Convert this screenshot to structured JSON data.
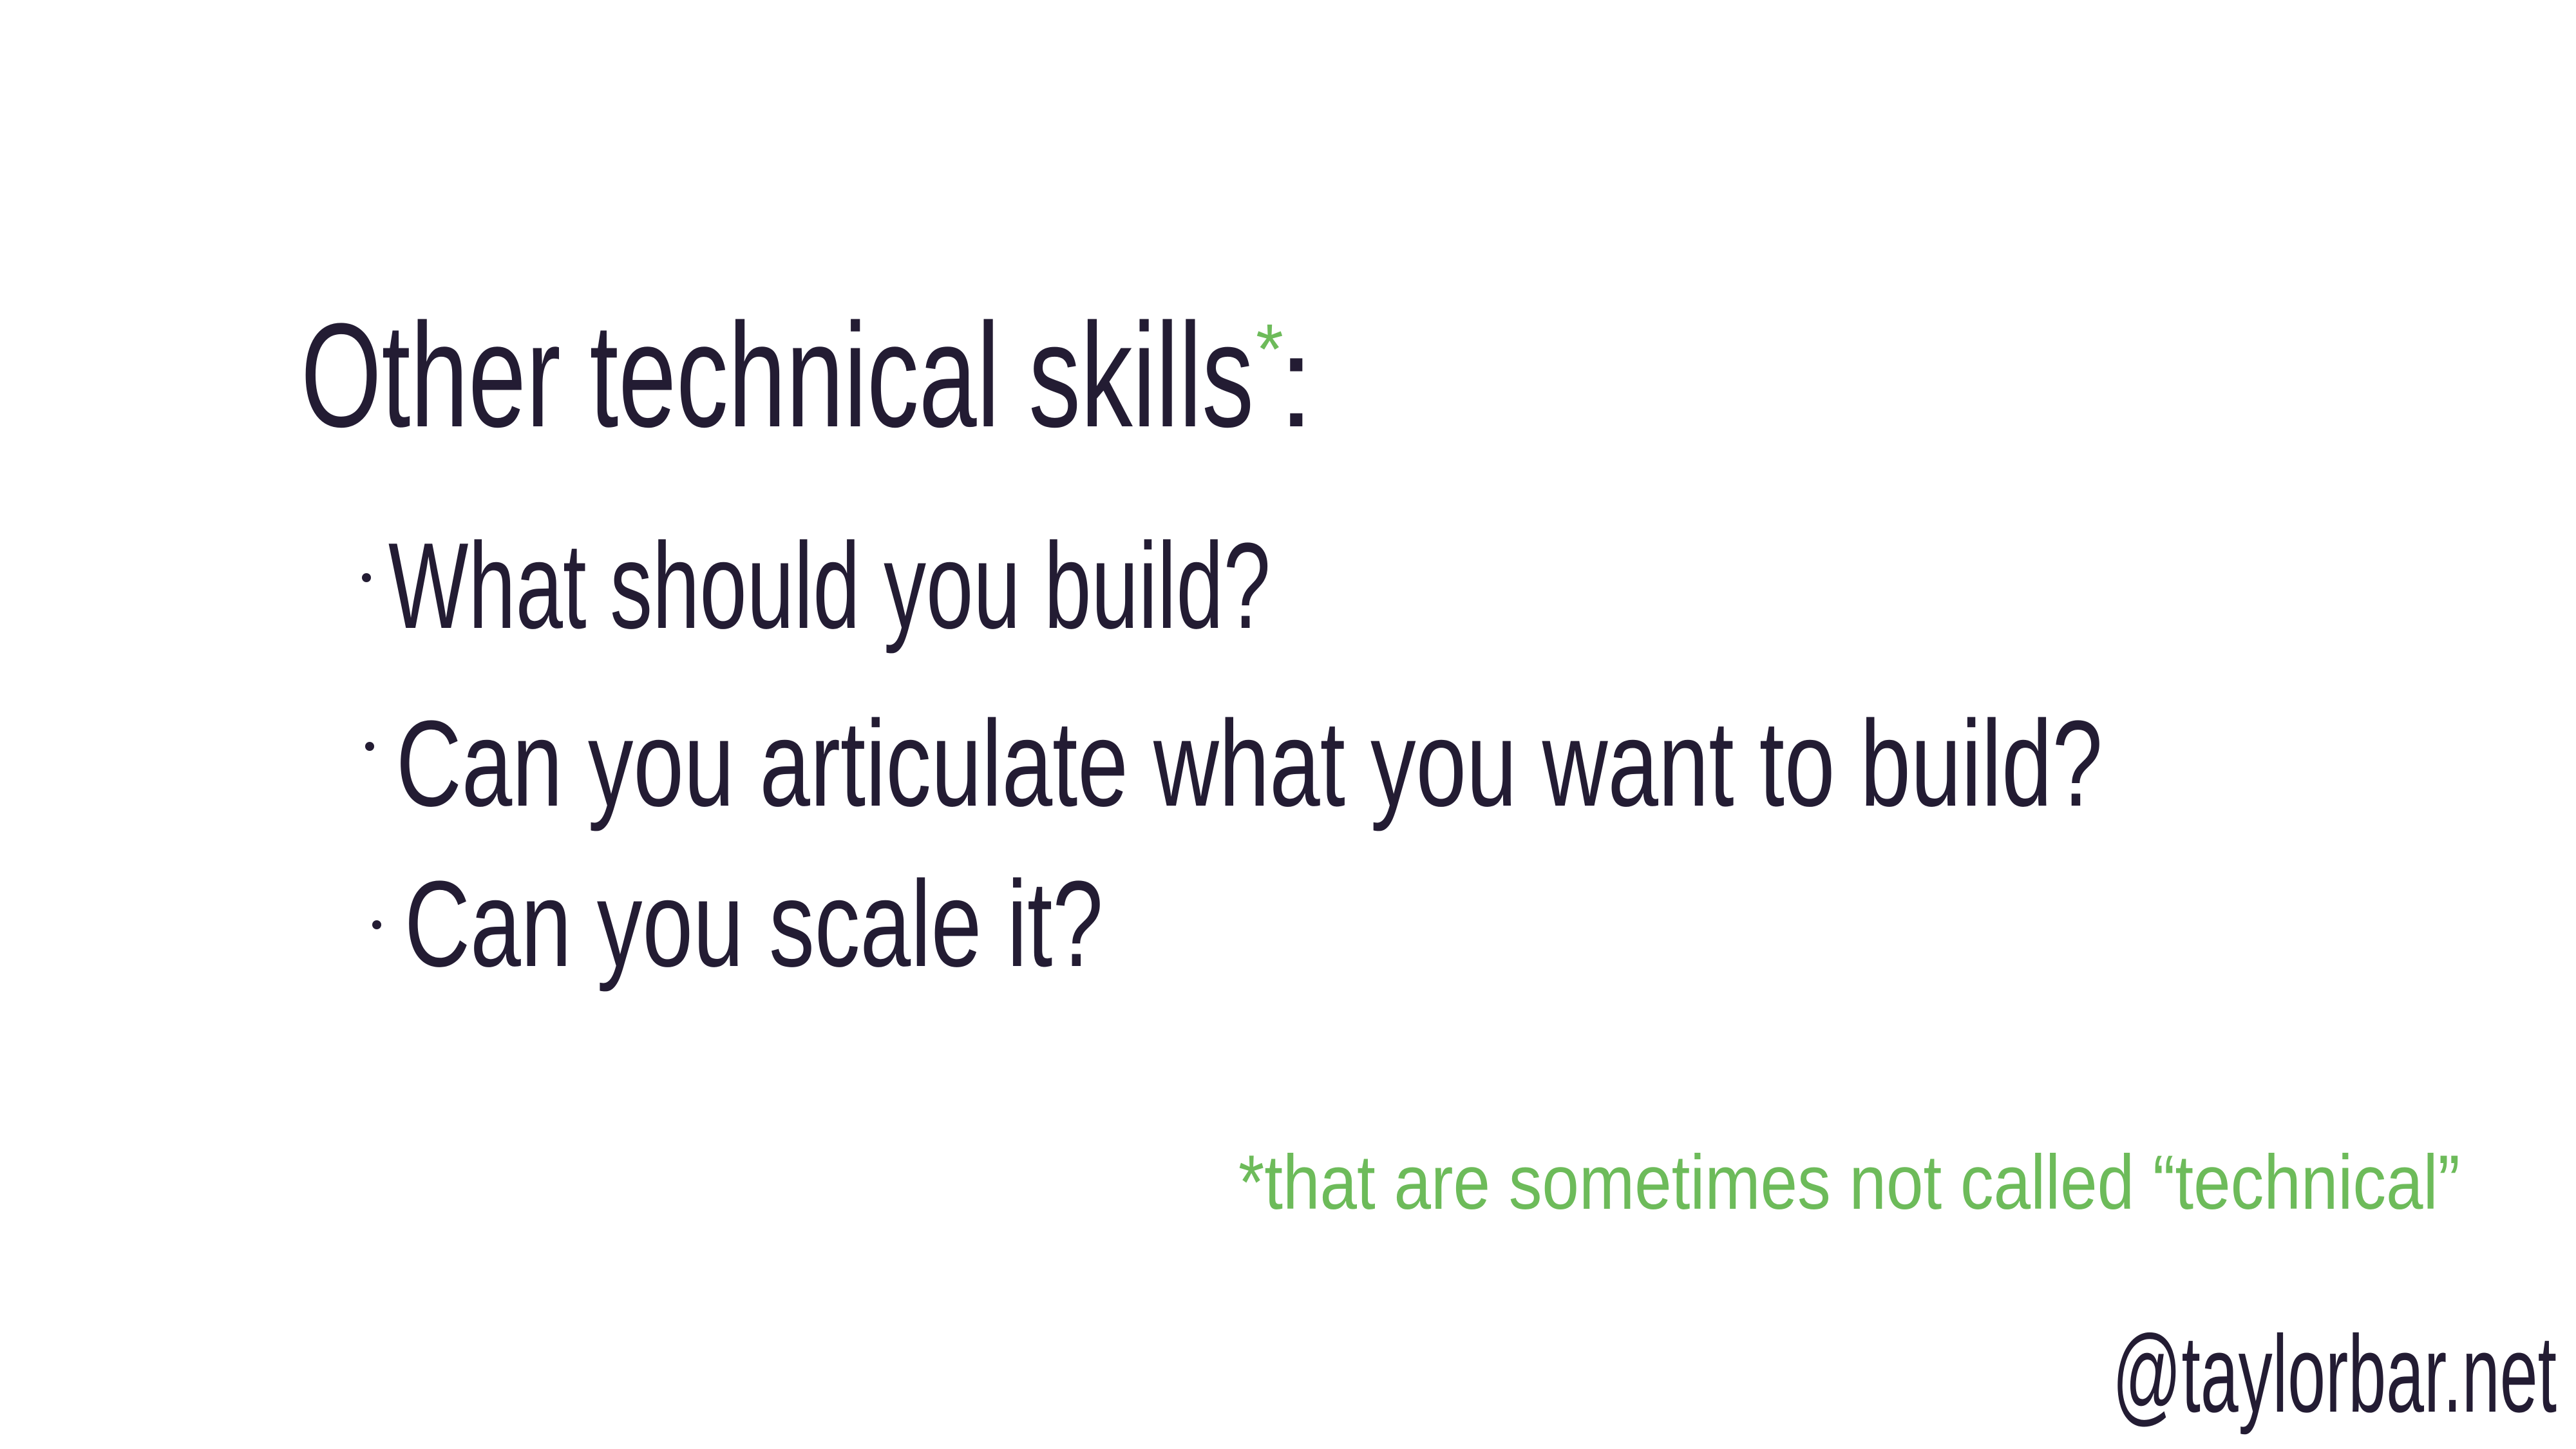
{
  "slide": {
    "title": "Other technical skills",
    "title_mark": "*",
    "title_end": ":",
    "items": [
      "What should you build?",
      "Can you articulate what you want to build?",
      "Can you scale it?"
    ],
    "footnote": "*that are sometimes not called “technical”",
    "handle": "@taylorbar.net"
  }
}
